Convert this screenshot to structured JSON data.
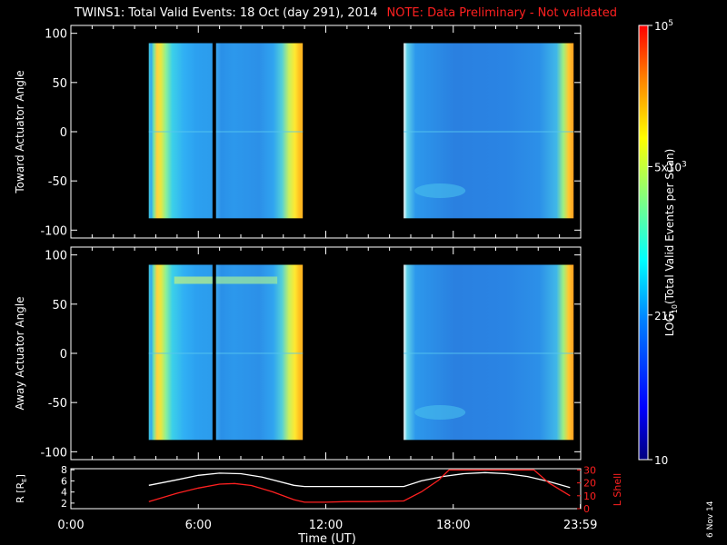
{
  "header": {
    "title": "TWINS1: Total Valid Events: 18 Oct (day 291), 2014",
    "note": "NOTE: Data Preliminary - Not validated"
  },
  "footer": {
    "stamp": "6 Nov 14"
  },
  "colors": {
    "background": "#000000",
    "frame": "#ffffff",
    "note": "#ff2020",
    "r_line": "#ffffff",
    "lshell_line": "#ff2020"
  },
  "chart_data": [
    {
      "type": "heatmap",
      "ylabel": "Toward Actuator Angle",
      "yticks": [
        100,
        50,
        0,
        -50,
        -100
      ],
      "ylim": [
        -108,
        108
      ],
      "xlim_hours": [
        0,
        24
      ],
      "data_blocks": [
        {
          "start": "3:40",
          "end": "6:40",
          "angle_range": [
            -88,
            90
          ]
        },
        {
          "start": "6:50",
          "end": "10:55",
          "angle_range": [
            -88,
            90
          ]
        },
        {
          "start": "15:40",
          "end": "23:40",
          "angle_range": [
            -88,
            90
          ]
        }
      ],
      "description_levels": "low counts (blue) in center, high counts (yellow/orange) at block edges"
    },
    {
      "type": "heatmap",
      "ylabel": "Away Actuator Angle",
      "yticks": [
        100,
        50,
        0,
        -50,
        -100
      ],
      "ylim": [
        -108,
        108
      ],
      "xlim_hours": [
        0,
        24
      ],
      "data_blocks": [
        {
          "start": "3:40",
          "end": "6:40",
          "angle_range": [
            -88,
            90
          ]
        },
        {
          "start": "6:50",
          "end": "10:55",
          "angle_range": [
            -88,
            90
          ]
        },
        {
          "start": "15:40",
          "end": "23:40",
          "angle_range": [
            -88,
            90
          ]
        }
      ]
    },
    {
      "type": "line",
      "ylabel_left": "R [R",
      "ylabel_left_sub": "E",
      "ylabel_left_end": "]",
      "ylabel_right": "L Shell",
      "yticks_left": [
        8,
        6,
        4,
        2
      ],
      "yticks_right": [
        30,
        20,
        10,
        0
      ],
      "xlabel": "Time (UT)",
      "xticks": [
        "0:00",
        "6:00",
        "12:00",
        "18:00",
        "23:59"
      ],
      "series": [
        {
          "name": "R",
          "x": [
            3.67,
            5,
            6,
            7,
            8,
            9,
            10.5,
            11,
            12,
            13,
            14,
            15.67,
            16.5,
            17.5,
            18.5,
            19.5,
            20.5,
            21.5,
            22.5,
            23.5
          ],
          "y": [
            5.2,
            6.2,
            7.0,
            7.4,
            7.3,
            6.7,
            5.2,
            5.0,
            5.0,
            5.0,
            5.0,
            5.0,
            6.0,
            6.8,
            7.3,
            7.5,
            7.3,
            6.8,
            5.9,
            4.8
          ]
        },
        {
          "name": "L Shell",
          "x": [
            3.67,
            5,
            6,
            7,
            7.7,
            8.5,
            9.5,
            10.5,
            11,
            12,
            13,
            14,
            15.67,
            16.5,
            17.3,
            17.8,
            21.8,
            22.5,
            23.5
          ],
          "y": [
            5.5,
            12,
            16,
            19,
            19.5,
            18,
            13,
            7,
            5,
            5,
            5.5,
            5.5,
            6,
            13,
            22,
            30,
            30,
            20,
            10
          ]
        }
      ]
    }
  ],
  "colorbar": {
    "label": "LOG",
    "label_sub": "10",
    "label_rest": "(Total Valid Events per Scan)",
    "ticks": [
      {
        "value": 100000,
        "base": "10",
        "exp": "5"
      },
      {
        "value": 5000,
        "base": "5x10",
        "exp": "3"
      },
      {
        "value": 215,
        "text": "215"
      },
      {
        "value": 10,
        "text": "10"
      }
    ],
    "range": [
      10,
      100000
    ]
  }
}
